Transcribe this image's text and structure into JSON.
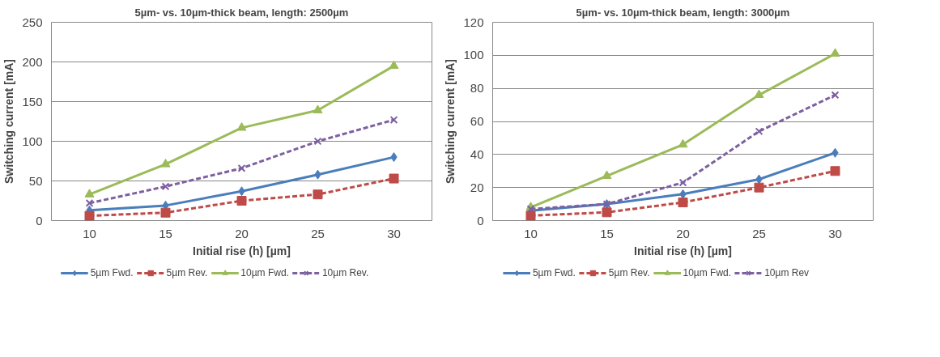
{
  "chart_data": [
    {
      "type": "line",
      "title": "5µm- vs. 10µm-thick beam, length: 2500µm",
      "xlabel": "Initial rise (h) [µm]",
      "ylabel": "Switching current [mA]",
      "categories": [
        "10",
        "15",
        "20",
        "25",
        "30"
      ],
      "ylim": [
        0,
        250
      ],
      "yticks": [
        0,
        50,
        100,
        150,
        200,
        250
      ],
      "grid": "y",
      "legend": "bottom",
      "series": [
        {
          "name": "5µm Fwd.",
          "color": "#4a7ebb",
          "marker": "diamond",
          "line_style": "solid",
          "values": [
            13,
            19,
            37,
            58,
            80
          ]
        },
        {
          "name": "5µm Rev.",
          "color": "#be4b48",
          "marker": "square",
          "line_style": "dashed",
          "values": [
            6,
            10,
            25,
            33,
            53
          ]
        },
        {
          "name": "10µm Fwd.",
          "color": "#9bbb59",
          "marker": "triangle",
          "line_style": "solid",
          "values": [
            33,
            71,
            117,
            139,
            195
          ]
        },
        {
          "name": "10µm Rev.",
          "color": "#7d60a0",
          "marker": "cross",
          "line_style": "dashed",
          "values": [
            22,
            43,
            66,
            100,
            127
          ]
        }
      ]
    },
    {
      "type": "line",
      "title": "5µm- vs. 10µm-thick beam, length: 3000µm",
      "xlabel": "Initial rise (h) [µm]",
      "ylabel": "Switching current [mA]",
      "categories": [
        "10",
        "15",
        "20",
        "25",
        "30"
      ],
      "ylim": [
        0,
        120
      ],
      "yticks": [
        0,
        20,
        40,
        60,
        80,
        100,
        120
      ],
      "grid": "y",
      "legend": "bottom",
      "series": [
        {
          "name": "5µm Fwd.",
          "color": "#4a7ebb",
          "marker": "diamond",
          "line_style": "solid",
          "values": [
            6,
            10,
            16,
            25,
            41
          ]
        },
        {
          "name": "5µm Rev.",
          "color": "#be4b48",
          "marker": "square",
          "line_style": "dashed",
          "values": [
            3,
            5,
            11,
            20,
            30
          ]
        },
        {
          "name": "10µm Fwd.",
          "color": "#9bbb59",
          "marker": "triangle",
          "line_style": "solid",
          "values": [
            8,
            27,
            46,
            76,
            101
          ]
        },
        {
          "name": "10µm Rev",
          "color": "#7d60a0",
          "marker": "cross",
          "line_style": "dashed",
          "values": [
            7,
            10,
            23,
            54,
            76
          ]
        }
      ]
    }
  ]
}
